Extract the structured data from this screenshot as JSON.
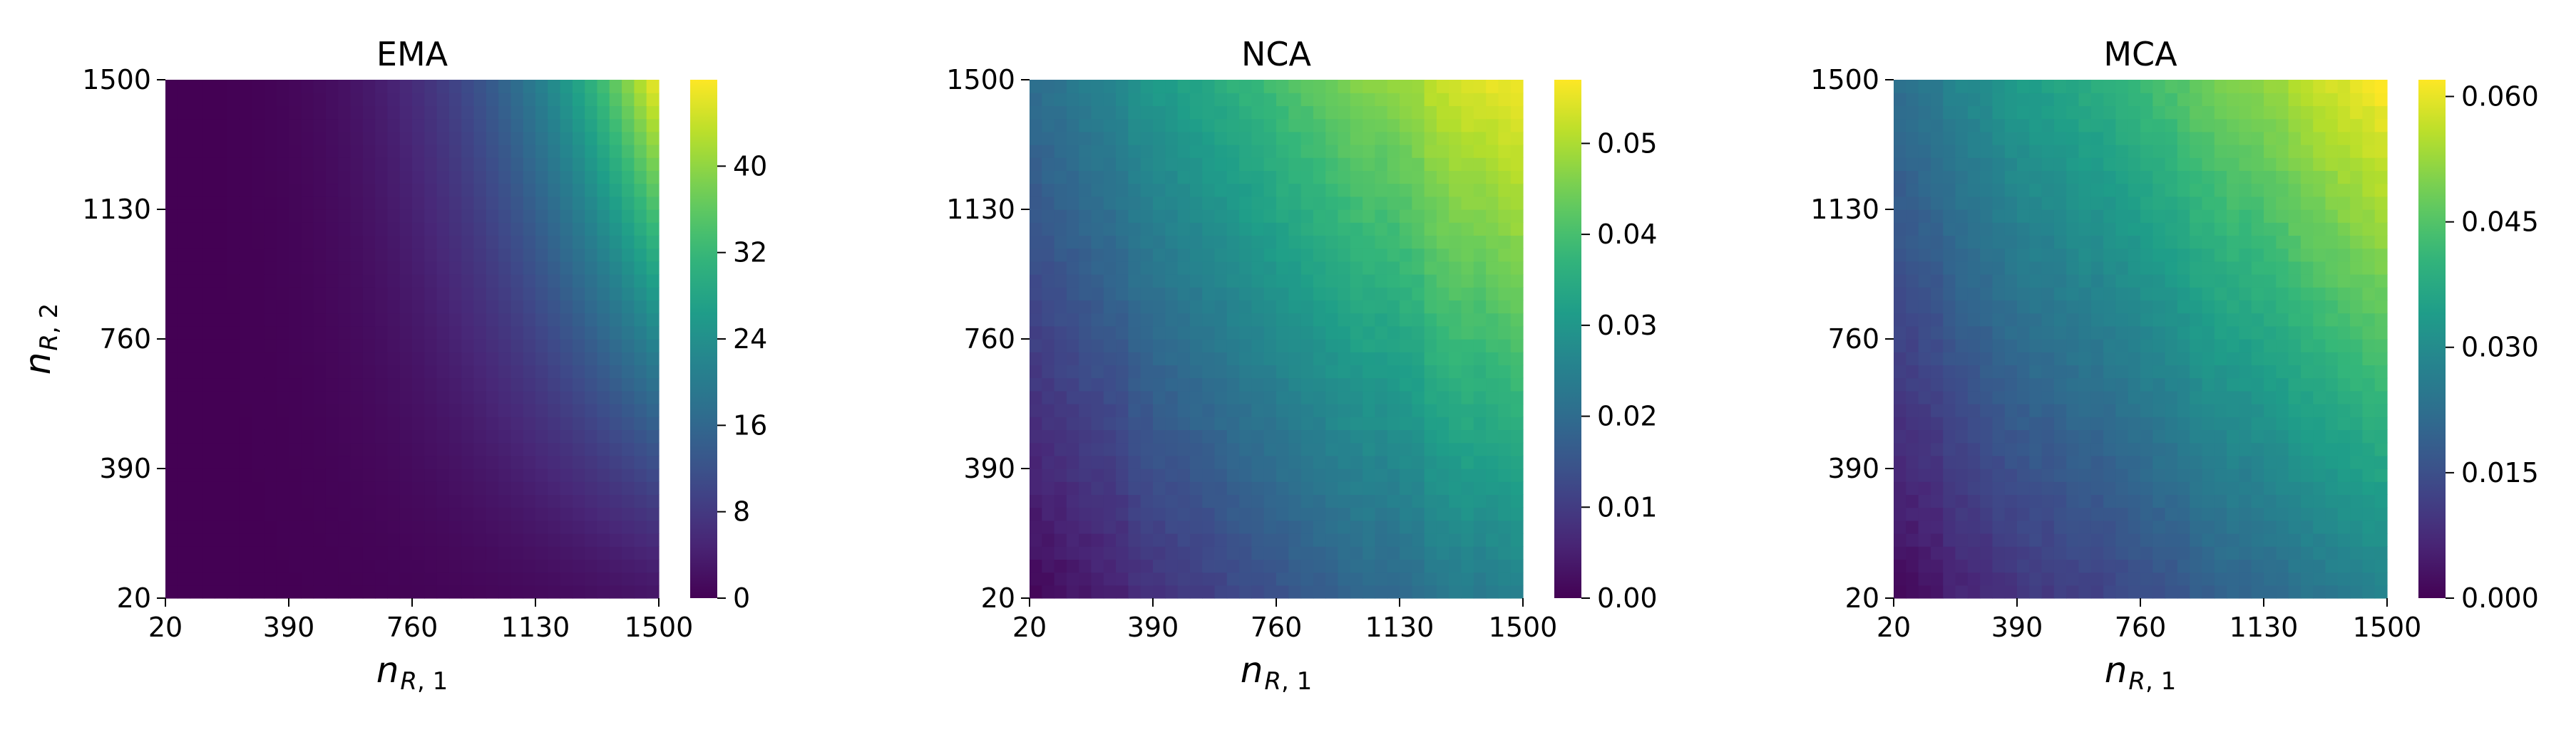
{
  "chart_data": [
    {
      "type": "heatmap",
      "title": "EMA",
      "xlabel": "n_{R,1}",
      "ylabel": "n_{R,2}",
      "x_ticks": [
        "20",
        "390",
        "760",
        "1130",
        "1500"
      ],
      "y_ticks": [
        "20",
        "390",
        "760",
        "1130",
        "1500"
      ],
      "x_range": [
        20,
        1500
      ],
      "y_range": [
        20,
        1500
      ],
      "grid_size": 40,
      "colormap": "viridis",
      "colorbar": {
        "range": [
          0,
          48
        ],
        "ticks": [
          "0",
          "8",
          "16",
          "24",
          "32",
          "40"
        ],
        "tick_values": [
          0,
          8,
          16,
          24,
          32,
          40
        ]
      },
      "value_model": {
        "kind": "ema",
        "max": 48
      },
      "corner_values": {
        "x20_y20": 0.0,
        "x1500_y20": 3.0,
        "x20_y1500": 0.5,
        "x1500_y1500": 48.0
      }
    },
    {
      "type": "heatmap",
      "title": "NCA",
      "xlabel": "n_{R,1}",
      "ylabel": "",
      "x_ticks": [
        "20",
        "390",
        "760",
        "1130",
        "1500"
      ],
      "y_ticks": [
        "20",
        "390",
        "760",
        "1130",
        "1500"
      ],
      "x_range": [
        20,
        1500
      ],
      "y_range": [
        20,
        1500
      ],
      "grid_size": 40,
      "colormap": "viridis",
      "colorbar": {
        "range": [
          0,
          0.057
        ],
        "ticks": [
          "0.00",
          "0.01",
          "0.02",
          "0.03",
          "0.04",
          "0.05"
        ],
        "tick_values": [
          0,
          0.01,
          0.02,
          0.03,
          0.04,
          0.05
        ]
      },
      "value_model": {
        "kind": "ca",
        "max": 0.057
      },
      "corner_values": {
        "x20_y20": 0.002,
        "x1500_y20": 0.026,
        "x20_y1500": 0.023,
        "x1500_y1500": 0.057
      }
    },
    {
      "type": "heatmap",
      "title": "MCA",
      "xlabel": "n_{R,1}",
      "ylabel": "",
      "x_ticks": [
        "20",
        "390",
        "760",
        "1130",
        "1500"
      ],
      "y_ticks": [
        "20",
        "390",
        "760",
        "1130",
        "1500"
      ],
      "x_range": [
        20,
        1500
      ],
      "y_range": [
        20,
        1500
      ],
      "grid_size": 40,
      "colormap": "viridis",
      "colorbar": {
        "range": [
          0,
          0.062
        ],
        "ticks": [
          "0.000",
          "0.015",
          "0.030",
          "0.045",
          "0.060"
        ],
        "tick_values": [
          0,
          0.015,
          0.03,
          0.045,
          0.06
        ]
      },
      "value_model": {
        "kind": "ca",
        "max": 0.062
      },
      "corner_values": {
        "x20_y20": 0.002,
        "x1500_y20": 0.027,
        "x20_y1500": 0.025,
        "x1500_y1500": 0.062
      }
    }
  ]
}
